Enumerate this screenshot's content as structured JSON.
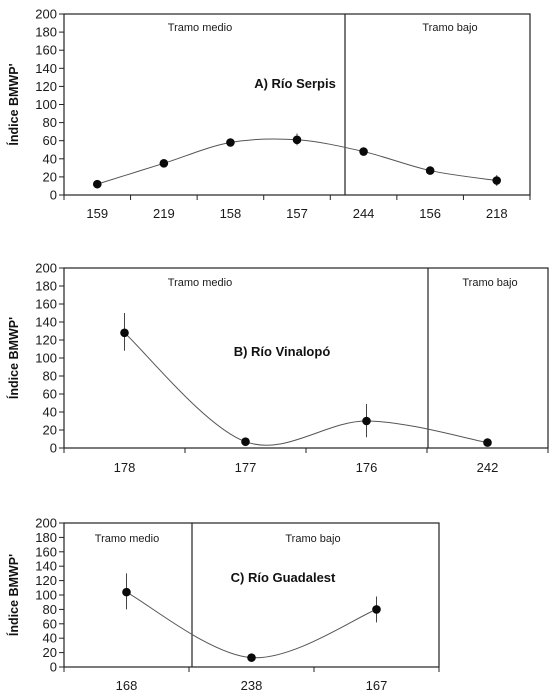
{
  "chart_data": [
    {
      "type": "line",
      "title": "A) Río Serpis",
      "ylabel": "Índice BMWP'",
      "ylim": [
        0,
        200
      ],
      "yticks": [
        0,
        20,
        40,
        60,
        80,
        100,
        120,
        140,
        160,
        180,
        200
      ],
      "categories": [
        "159",
        "219",
        "158",
        "157",
        "244",
        "156",
        "218"
      ],
      "values": [
        12,
        35,
        58,
        61,
        48,
        27,
        16
      ],
      "error_low": [
        12,
        35,
        58,
        55,
        48,
        27,
        10
      ],
      "error_high": [
        12,
        35,
        58,
        68,
        48,
        27,
        22
      ],
      "zones": [
        {
          "label": "Tramo medio",
          "categories": [
            "159",
            "219",
            "158",
            "157"
          ]
        },
        {
          "label": "Tramo bajo",
          "categories": [
            "244",
            "156",
            "218"
          ]
        }
      ],
      "smooth": true,
      "grid": false,
      "marker": "circle"
    },
    {
      "type": "line",
      "title": "B) Río Vinalopó",
      "ylabel": "Índice BMWP'",
      "ylim": [
        0,
        200
      ],
      "yticks": [
        0,
        20,
        40,
        60,
        80,
        100,
        120,
        140,
        160,
        180,
        200
      ],
      "categories": [
        "178",
        "177",
        "176",
        "242"
      ],
      "values": [
        128,
        7,
        30,
        6
      ],
      "error_low": [
        108,
        7,
        12,
        6
      ],
      "error_high": [
        150,
        7,
        49,
        6
      ],
      "zones": [
        {
          "label": "Tramo medio",
          "categories": [
            "178",
            "177",
            "176"
          ]
        },
        {
          "label": "Tramo bajo",
          "categories": [
            "242"
          ]
        }
      ],
      "smooth": true,
      "grid": false,
      "marker": "circle"
    },
    {
      "type": "line",
      "title": "C) Río Guadalest",
      "ylabel": "Índice BMWP'",
      "ylim": [
        0,
        200
      ],
      "yticks": [
        0,
        20,
        40,
        60,
        80,
        100,
        120,
        140,
        160,
        180,
        200
      ],
      "categories": [
        "168",
        "238",
        "167"
      ],
      "values": [
        104,
        13,
        80
      ],
      "error_low": [
        80,
        13,
        62
      ],
      "error_high": [
        130,
        13,
        98
      ],
      "zones": [
        {
          "label": "Tramo medio",
          "categories": [
            "168"
          ]
        },
        {
          "label": "Tramo bajo",
          "categories": [
            "238",
            "167"
          ]
        }
      ],
      "smooth": true,
      "grid": false,
      "marker": "circle"
    }
  ]
}
